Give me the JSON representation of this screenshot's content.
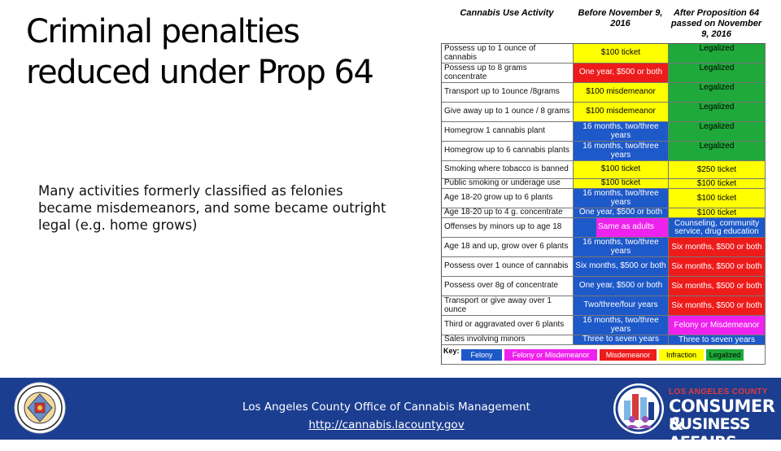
{
  "slide": {
    "title_line1": "Criminal penalties",
    "title_line2": "reduced under Prop 64",
    "body": "Many activities formerly classified as felonies became misdemeanors, and some became outright legal (e.g. home grows)"
  },
  "table": {
    "headers": [
      "Cannabis Use Activity",
      "Before November 9, 2016",
      "After Proposition 64 passed on November 9, 2016"
    ],
    "rows": [
      {
        "activity": "Possess up to 1 ounce of cannabis",
        "before": "$100 ticket",
        "before_color": "yellow",
        "after": "Legalized",
        "after_color": "green",
        "h": 24
      },
      {
        "activity": "Possess up to 8 grams concentrate",
        "before": "One year, $500 or both",
        "before_color": "red",
        "after": "Legalized",
        "after_color": "green",
        "h": 24
      },
      {
        "activity": "Transport up to 1ounce /8grams",
        "before": "$100 misdemeanor",
        "before_color": "yellow",
        "after": "Legalized",
        "after_color": "green",
        "h": 24
      },
      {
        "activity": "Give away up to 1 ounce / 8 grams",
        "before": "$100 misdemeanor",
        "before_color": "yellow",
        "after": "Legalized",
        "after_color": "green",
        "h": 24
      },
      {
        "activity": "Homegrow 1 cannabis plant",
        "before": "16 months, two/three years",
        "before_color": "blue",
        "after": "Legalized",
        "after_color": "green",
        "h": 24
      },
      {
        "activity": "Homegrow up to 6 cannabis plants",
        "before": "16 months, two/three years",
        "before_color": "blue",
        "after": "Legalized",
        "after_color": "green",
        "h": 24
      },
      {
        "activity": "Smoking where tobacco is banned",
        "before": "$100 ticket",
        "before_color": "yellow",
        "after": "$250 ticket",
        "after_color": "yellow",
        "h": 22
      },
      {
        "activity": "Public smoking or underage use",
        "before": "$100 ticket",
        "before_color": "yellow",
        "after": "$100 ticket",
        "after_color": "yellow",
        "h": 12
      },
      {
        "activity": "Age 18-20 grow up to 6 plants",
        "before": "16 months, two/three years",
        "before_color": "blue",
        "after": "$100 ticket",
        "after_color": "yellow",
        "h": 24
      },
      {
        "activity": "Age 18-20 up to 4 g. concentrate",
        "before": "One year, $500 or both",
        "before_color": "blue",
        "after": "$100 ticket",
        "after_color": "yellow",
        "h": 12
      },
      {
        "activity": "Offenses by minors up to age 18",
        "before": "Same as adults",
        "before_color": "split",
        "after": "Counseling, community service, drug education",
        "after_color": "blue",
        "h": 24
      },
      {
        "activity": "Age 18 and up, grow over 6 plants",
        "before": "16 months, two/three years",
        "before_color": "blue",
        "after": "Six months, $500 or both",
        "after_color": "red",
        "h": 24
      },
      {
        "activity": "Possess over 1 ounce of cannabis",
        "before": "Six months, $500 or both",
        "before_color": "blue",
        "after": "Six months, $500 or both",
        "after_color": "red",
        "h": 24
      },
      {
        "activity": "Possess over 8g of concentrate",
        "before": "One year, $500 or both",
        "before_color": "blue",
        "after": "Six months, $500 or both",
        "after_color": "red",
        "h": 24
      },
      {
        "activity": "Transport or give away over 1 ounce",
        "before": "Two/three/four years",
        "before_color": "blue",
        "after": "Six months, $500 or both",
        "after_color": "red",
        "h": 24
      },
      {
        "activity": "Third or aggravated over 6 plants",
        "before": "16 months, two/three years",
        "before_color": "blue",
        "after": "Felony or Misdemeanor",
        "after_color": "pink",
        "h": 24
      },
      {
        "activity": "Sales involving minors",
        "before": "Three to seven years",
        "before_color": "blue",
        "after": "Three to seven years",
        "after_color": "blue",
        "h": 12
      }
    ],
    "key": {
      "label": "Key:",
      "items": [
        {
          "label": "Felony",
          "color": "#1e59c9",
          "text": "#ffffff",
          "w": 50
        },
        {
          "label": "Felony or Misdemeanor",
          "color": "#ee22ee",
          "text": "#ffffff",
          "w": 114
        },
        {
          "label": "Misdemeanor",
          "color": "#ee1b1b",
          "text": "#ffffff",
          "w": 70
        },
        {
          "label": "Infraction",
          "color": "#ffff00",
          "text": "#000000",
          "w": 55
        },
        {
          "label": "Legalized",
          "color": "#1ea93a",
          "text": "#000000",
          "w": 46
        }
      ]
    }
  },
  "footer": {
    "office": "Los Angeles County Office of Cannabis Management",
    "url": "http://cannabis.lacounty.gov",
    "cba_county": "LOS ANGELES COUNTY",
    "cba_line1": "CONSUMER &",
    "cba_line2": "BUSINESS AFFAIRS"
  },
  "colors": {
    "felony": "#1e59c9",
    "felony_or_misdemeanor": "#ee22ee",
    "misdemeanor": "#ee1b1b",
    "infraction": "#ffff00",
    "legalized": "#1ea93a",
    "footer_band": "#1c3e90"
  }
}
